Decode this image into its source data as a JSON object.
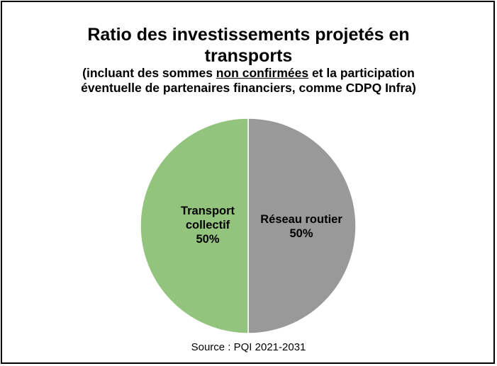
{
  "chart_data": {
    "type": "pie",
    "title_line1": "Ratio des investissements projetés en",
    "title_line2": "transports",
    "subtitle_before": "(incluant des sommes ",
    "subtitle_underlined": "non confirmées",
    "subtitle_after_line1": " et la participation",
    "subtitle_line2": "éventuelle de partenaires financiers, comme CDPQ Infra)",
    "slices": [
      {
        "label_line1": "Réseau routier",
        "label_line2": "",
        "percent_label": "50%",
        "value": 50,
        "color": "#999999"
      },
      {
        "label_line1": "Transport",
        "label_line2": "collectif",
        "percent_label": "50%",
        "value": 50,
        "color": "#93c47d"
      }
    ],
    "source": "Source : PQI 2021-2031"
  }
}
